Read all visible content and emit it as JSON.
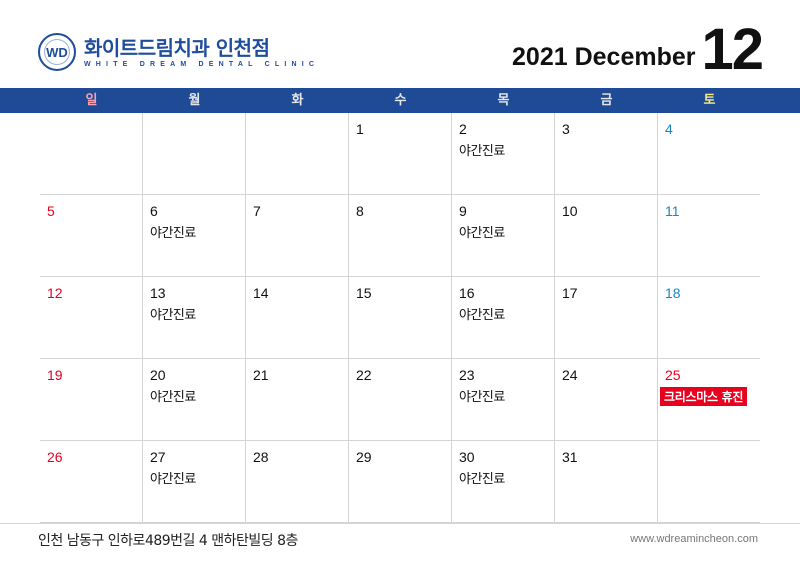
{
  "logo": {
    "mark": "WD",
    "name_ko": "화이트드림치과 인천점",
    "name_en": "WHITE DREAM DENTAL CLINIC"
  },
  "title": {
    "year_month": "2021 December",
    "month_number": "12"
  },
  "weekdays": [
    {
      "label": "일",
      "color": "#f4a3b5"
    },
    {
      "label": "월",
      "color": "#e6e6e6"
    },
    {
      "label": "화",
      "color": "#e6e6e6"
    },
    {
      "label": "수",
      "color": "#e6e6e6"
    },
    {
      "label": "목",
      "color": "#e6e6e6"
    },
    {
      "label": "금",
      "color": "#e6e6e6"
    },
    {
      "label": "토",
      "color": "#f3e88a"
    }
  ],
  "colors": {
    "header_bar": "#1f4b96",
    "sunday": "#e8001f",
    "saturday": "#1a86c8",
    "holiday_badge": "#e8001f"
  },
  "weeks": [
    [
      {
        "d": ""
      },
      {
        "d": ""
      },
      {
        "d": ""
      },
      {
        "d": "1"
      },
      {
        "d": "2",
        "note": "야간진료"
      },
      {
        "d": "3"
      },
      {
        "d": "4"
      }
    ],
    [
      {
        "d": "5"
      },
      {
        "d": "6",
        "note": "야간진료"
      },
      {
        "d": "7"
      },
      {
        "d": "8"
      },
      {
        "d": "9",
        "note": "야간진료"
      },
      {
        "d": "10"
      },
      {
        "d": "11"
      }
    ],
    [
      {
        "d": "12"
      },
      {
        "d": "13",
        "note": "야간진료"
      },
      {
        "d": "14"
      },
      {
        "d": "15"
      },
      {
        "d": "16",
        "note": "야간진료"
      },
      {
        "d": "17"
      },
      {
        "d": "18"
      }
    ],
    [
      {
        "d": "19"
      },
      {
        "d": "20",
        "note": "야간진료"
      },
      {
        "d": "21"
      },
      {
        "d": "22"
      },
      {
        "d": "23",
        "note": "야간진료"
      },
      {
        "d": "24"
      },
      {
        "d": "25",
        "holiday": true,
        "badge": "크리스마스 휴진"
      }
    ],
    [
      {
        "d": "26"
      },
      {
        "d": "27",
        "note": "야간진료"
      },
      {
        "d": "28"
      },
      {
        "d": "29"
      },
      {
        "d": "30",
        "note": "야간진료"
      },
      {
        "d": "31"
      },
      {
        "d": ""
      }
    ]
  ],
  "footer": {
    "address": "인천 남동구 인하로489번길 4 맨하탄빌딩 8층",
    "website": "www.wdreamincheon.com"
  }
}
